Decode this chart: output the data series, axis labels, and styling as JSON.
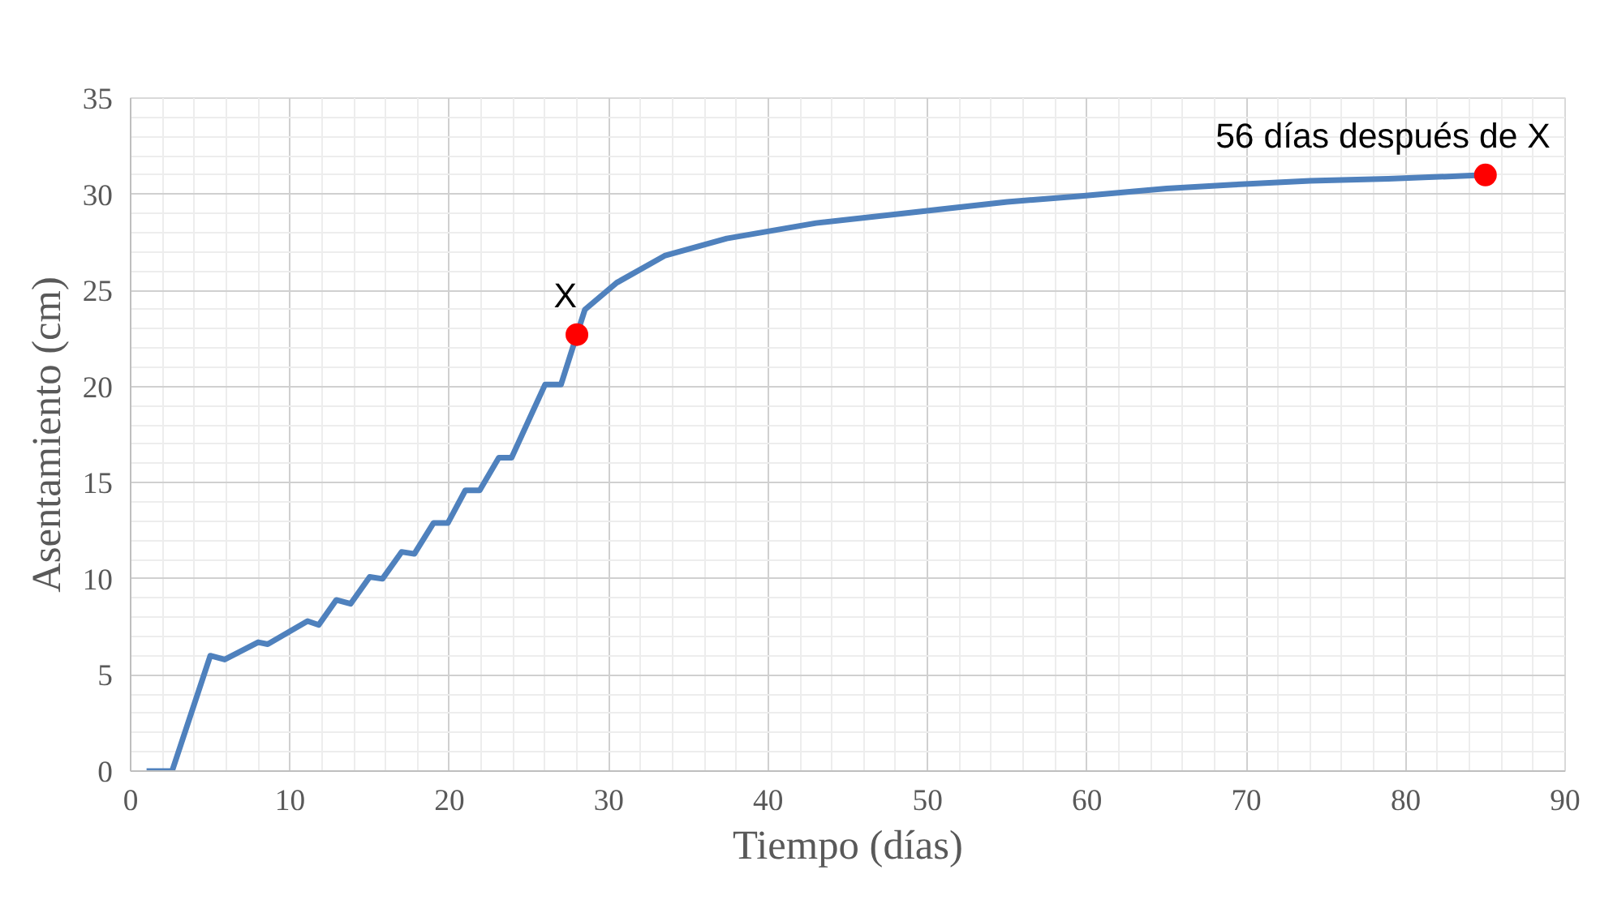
{
  "chart_data": {
    "type": "line",
    "xlabel": "Tiempo (días)",
    "ylabel": "Asentamiento (cm)",
    "xlim": [
      0,
      90
    ],
    "ylim": [
      0,
      35
    ],
    "xticks": [
      0,
      10,
      20,
      30,
      40,
      50,
      60,
      70,
      80,
      90
    ],
    "yticks": [
      0,
      5,
      10,
      15,
      20,
      25,
      30,
      35
    ],
    "grid": true,
    "series": [
      {
        "color": "#4f81bd",
        "marker": "none",
        "line_style": "solid",
        "x": [
          1,
          2.6,
          5.0,
          5.9,
          8.0,
          8.6,
          11.1,
          11.8,
          12.9,
          13.8,
          15.0,
          15.8,
          17.0,
          17.8,
          19.0,
          19.9,
          21.0,
          21.9,
          23.1,
          23.9,
          26.0,
          27.0,
          28.0,
          28.5,
          30.5,
          33.5,
          37.4,
          43,
          49.5,
          55,
          59.5,
          65,
          69.2,
          74,
          78.9,
          85
        ],
        "values": [
          0,
          0,
          6.0,
          5.8,
          6.7,
          6.6,
          7.8,
          7.6,
          8.9,
          8.7,
          10.1,
          10.0,
          11.4,
          11.3,
          12.9,
          12.9,
          14.6,
          14.6,
          16.3,
          16.3,
          20.1,
          20.1,
          22.7,
          24.0,
          25.4,
          26.8,
          27.7,
          28.5,
          29.1,
          29.6,
          29.9,
          30.3,
          30.5,
          30.7,
          30.8,
          31.0
        ]
      },
      {
        "type": "scatter",
        "color": "#ff0000",
        "marker": "circle",
        "x": [
          28,
          85
        ],
        "values": [
          22.7,
          31
        ]
      }
    ],
    "annotations": [
      {
        "text": "X",
        "x": 28,
        "y": 22.7
      },
      {
        "text": "56 días después de X",
        "x": 85,
        "y": 31
      }
    ]
  }
}
